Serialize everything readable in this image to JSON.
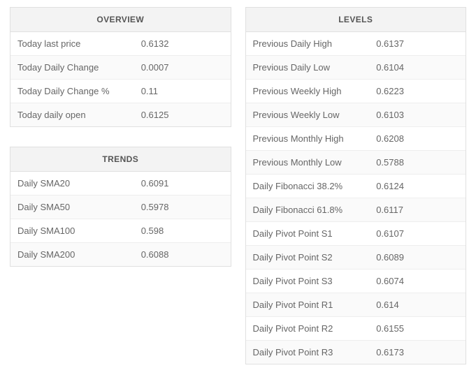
{
  "overview": {
    "title": "OVERVIEW",
    "rows": [
      {
        "label": "Today last price",
        "value": "0.6132"
      },
      {
        "label": "Today Daily Change",
        "value": "0.0007"
      },
      {
        "label": "Today Daily Change %",
        "value": "0.11"
      },
      {
        "label": "Today daily open",
        "value": "0.6125"
      }
    ]
  },
  "trends": {
    "title": "TRENDS",
    "rows": [
      {
        "label": "Daily SMA20",
        "value": "0.6091"
      },
      {
        "label": "Daily SMA50",
        "value": "0.5978"
      },
      {
        "label": "Daily SMA100",
        "value": "0.598"
      },
      {
        "label": "Daily SMA200",
        "value": "0.6088"
      }
    ]
  },
  "levels": {
    "title": "LEVELS",
    "rows": [
      {
        "label": "Previous Daily High",
        "value": "0.6137"
      },
      {
        "label": "Previous Daily Low",
        "value": "0.6104"
      },
      {
        "label": "Previous Weekly High",
        "value": "0.6223"
      },
      {
        "label": "Previous Weekly Low",
        "value": "0.6103"
      },
      {
        "label": "Previous Monthly High",
        "value": "0.6208"
      },
      {
        "label": "Previous Monthly Low",
        "value": "0.5788"
      },
      {
        "label": "Daily Fibonacci 38.2%",
        "value": "0.6124"
      },
      {
        "label": "Daily Fibonacci 61.8%",
        "value": "0.6117"
      },
      {
        "label": "Daily Pivot Point S1",
        "value": "0.6107"
      },
      {
        "label": "Daily Pivot Point S2",
        "value": "0.6089"
      },
      {
        "label": "Daily Pivot Point S3",
        "value": "0.6074"
      },
      {
        "label": "Daily Pivot Point R1",
        "value": "0.614"
      },
      {
        "label": "Daily Pivot Point R2",
        "value": "0.6155"
      },
      {
        "label": "Daily Pivot Point R3",
        "value": "0.6173"
      }
    ]
  }
}
